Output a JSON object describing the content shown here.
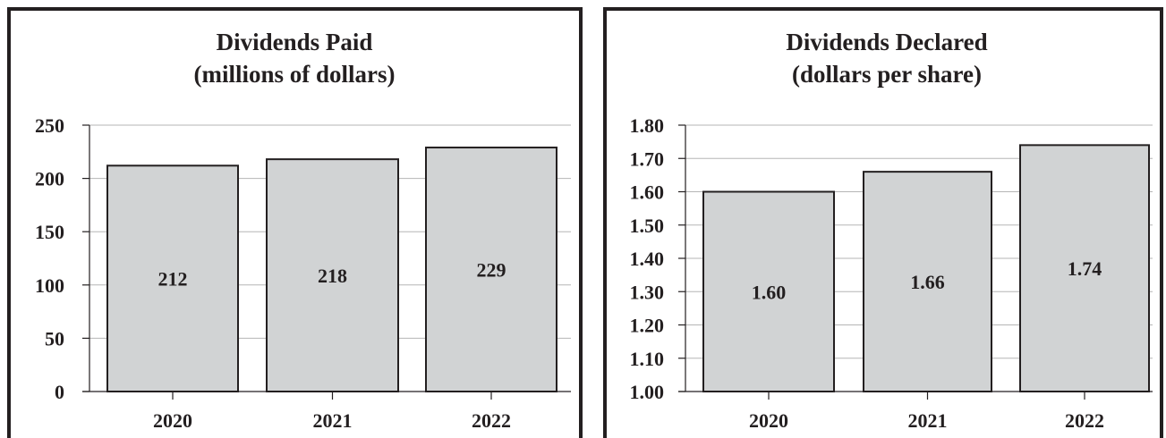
{
  "chart_data": [
    {
      "type": "bar",
      "title": "Dividends Paid",
      "subtitle": "(millions of dollars)",
      "categories": [
        "2020",
        "2021",
        "2022"
      ],
      "values": [
        212,
        218,
        229
      ],
      "value_labels": [
        "212",
        "218",
        "229"
      ],
      "ylim": [
        0,
        250
      ],
      "yticks": [
        "0",
        "50",
        "100",
        "150",
        "200",
        "250"
      ],
      "grid": true,
      "bar_color": "#d1d3d4"
    },
    {
      "type": "bar",
      "title": "Dividends Declared",
      "subtitle": "(dollars per share)",
      "categories": [
        "2020",
        "2021",
        "2022"
      ],
      "values": [
        1.6,
        1.66,
        1.74
      ],
      "value_labels": [
        "1.60",
        "1.66",
        "1.74"
      ],
      "ylim": [
        1.0,
        1.8
      ],
      "yticks": [
        "1.00",
        "1.10",
        "1.20",
        "1.30",
        "1.40",
        "1.50",
        "1.60",
        "1.70",
        "1.80"
      ],
      "grid": true,
      "bar_color": "#d1d3d4"
    }
  ]
}
